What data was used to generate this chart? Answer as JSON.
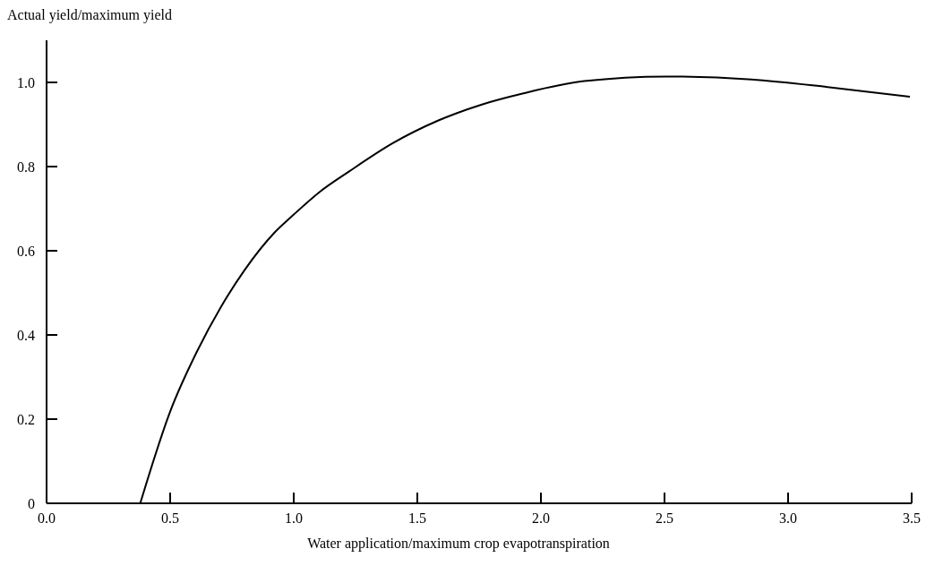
{
  "chart_data": {
    "type": "line",
    "xlabel": "Water application/maximum crop evapotranspiration",
    "ylabel": "Actual yield/maximum yield",
    "x": [
      0.379,
      0.5,
      0.608,
      0.705,
      0.801,
      0.922,
      1.0,
      1.103,
      1.223,
      1.402,
      1.583,
      1.764,
      1.929,
      2.175,
      2.507,
      2.852,
      3.16,
      3.493
    ],
    "series": [
      {
        "color": "#000000",
        "values": [
          0,
          0.218,
          0.36,
          0.466,
          0.554,
          0.643,
          0.686,
          0.739,
          0.788,
          0.856,
          0.909,
          0.948,
          0.974,
          1.003,
          1.014,
          1.007,
          0.989,
          0.966
        ]
      }
    ],
    "xlim": [
      0,
      3.5
    ],
    "ylim": [
      0,
      1.1
    ],
    "xticks": [
      {
        "value": 0,
        "label": "0.0"
      },
      0.5,
      {
        "value": 1,
        "label": "1.0"
      },
      1.5,
      {
        "value": 2,
        "label": "2.0"
      },
      2.5,
      {
        "value": 3,
        "label": "3.0"
      },
      3.5
    ],
    "yticks": [
      0,
      0.2,
      0.4,
      0.6,
      0.8,
      {
        "value": 1,
        "label": "1.0"
      }
    ],
    "grid": false,
    "marker": "none",
    "line_style": "solid"
  }
}
